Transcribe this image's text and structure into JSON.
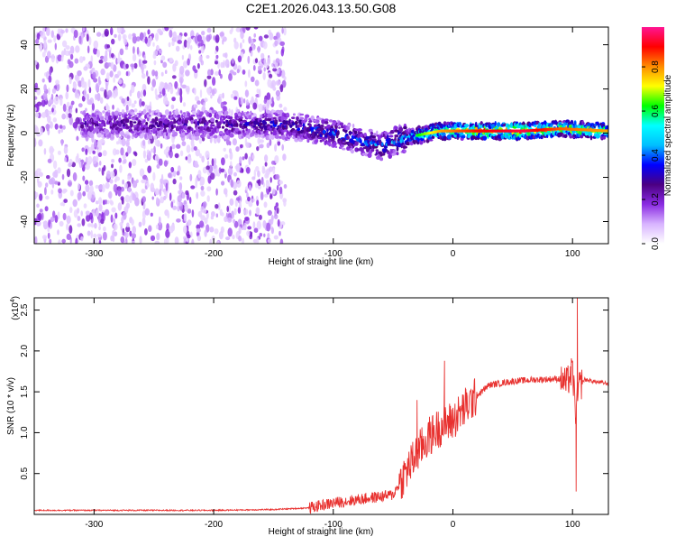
{
  "figure_title": "C2E1.2026.043.13.50.G08",
  "chart_data": [
    {
      "type": "heatmap",
      "title": "C2E1.2026.043.13.50.G08",
      "xlabel": "Height of straight line (km)",
      "ylabel": "Frequency (Hz)",
      "xlim": [
        -350,
        130
      ],
      "ylim": [
        -50,
        48
      ],
      "x_ticks": [
        -300,
        -200,
        -100,
        0,
        100
      ],
      "y_ticks": [
        -40,
        -20,
        0,
        20,
        40
      ],
      "colorbar": {
        "label": "Normalized spectral amplitude",
        "range": [
          0.0,
          0.98
        ],
        "ticks": [
          0.0,
          0.2,
          0.4,
          0.6,
          0.8
        ],
        "colormap": [
          "#ffffff",
          "#d8b4ff",
          "#8a2be2",
          "#4b0082",
          "#0000ff",
          "#00bfff",
          "#00ffff",
          "#00ff00",
          "#ffff00",
          "#ff8c00",
          "#ff0000",
          "#ff1493"
        ]
      },
      "ridge": [
        {
          "x": -290,
          "y": 4,
          "amp": 0.3
        },
        {
          "x": -250,
          "y": 4,
          "amp": 0.32
        },
        {
          "x": -200,
          "y": 4,
          "amp": 0.33
        },
        {
          "x": -150,
          "y": 4,
          "amp": 0.36
        },
        {
          "x": -120,
          "y": 2,
          "amp": 0.4
        },
        {
          "x": -100,
          "y": 0,
          "amp": 0.43
        },
        {
          "x": -80,
          "y": -3,
          "amp": 0.42
        },
        {
          "x": -60,
          "y": -6,
          "amp": 0.45
        },
        {
          "x": -45,
          "y": -3,
          "amp": 0.5
        },
        {
          "x": -30,
          "y": -1,
          "amp": 0.62
        },
        {
          "x": -10,
          "y": 1,
          "amp": 0.8
        },
        {
          "x": 20,
          "y": 1,
          "amp": 0.9
        },
        {
          "x": 60,
          "y": 1,
          "amp": 0.95
        },
        {
          "x": 90,
          "y": 2,
          "amp": 0.85
        },
        {
          "x": 130,
          "y": 1,
          "amp": 0.8
        }
      ],
      "noise_region_xmax": -140
    },
    {
      "type": "line",
      "xlabel": "Height of straight line (km)",
      "ylabel": "SNR (10 * v/v)",
      "y_multiplier": "(x10",
      "y_multiplier_exp": "4",
      "xlim": [
        -350,
        130
      ],
      "ylim": [
        0,
        2.65
      ],
      "x_ticks": [
        -300,
        -200,
        -100,
        0,
        100
      ],
      "y_ticks": [
        0.5,
        1.0,
        1.5,
        2.0,
        2.5
      ],
      "series": [
        {
          "name": "SNR",
          "color": "#e8312f",
          "x": [
            -350,
            -300,
            -250,
            -200,
            -150,
            -120,
            -100,
            -80,
            -60,
            -50,
            -40,
            -30,
            -20,
            -10,
            0,
            10,
            20,
            30,
            50,
            70,
            90,
            95,
            100,
            103,
            105,
            110,
            120,
            130
          ],
          "y": [
            0.05,
            0.05,
            0.05,
            0.05,
            0.06,
            0.08,
            0.14,
            0.18,
            0.22,
            0.24,
            0.5,
            0.75,
            0.95,
            1.08,
            1.15,
            1.3,
            1.45,
            1.58,
            1.63,
            1.65,
            1.66,
            1.6,
            1.75,
            1.2,
            1.55,
            1.65,
            1.62,
            1.6
          ]
        }
      ],
      "spikes": [
        {
          "x": -30,
          "y": 1.4
        },
        {
          "x": -7,
          "y": 1.88
        },
        {
          "x": 104,
          "y": 2.65
        },
        {
          "x": 103,
          "y": 0.28
        }
      ]
    }
  ]
}
